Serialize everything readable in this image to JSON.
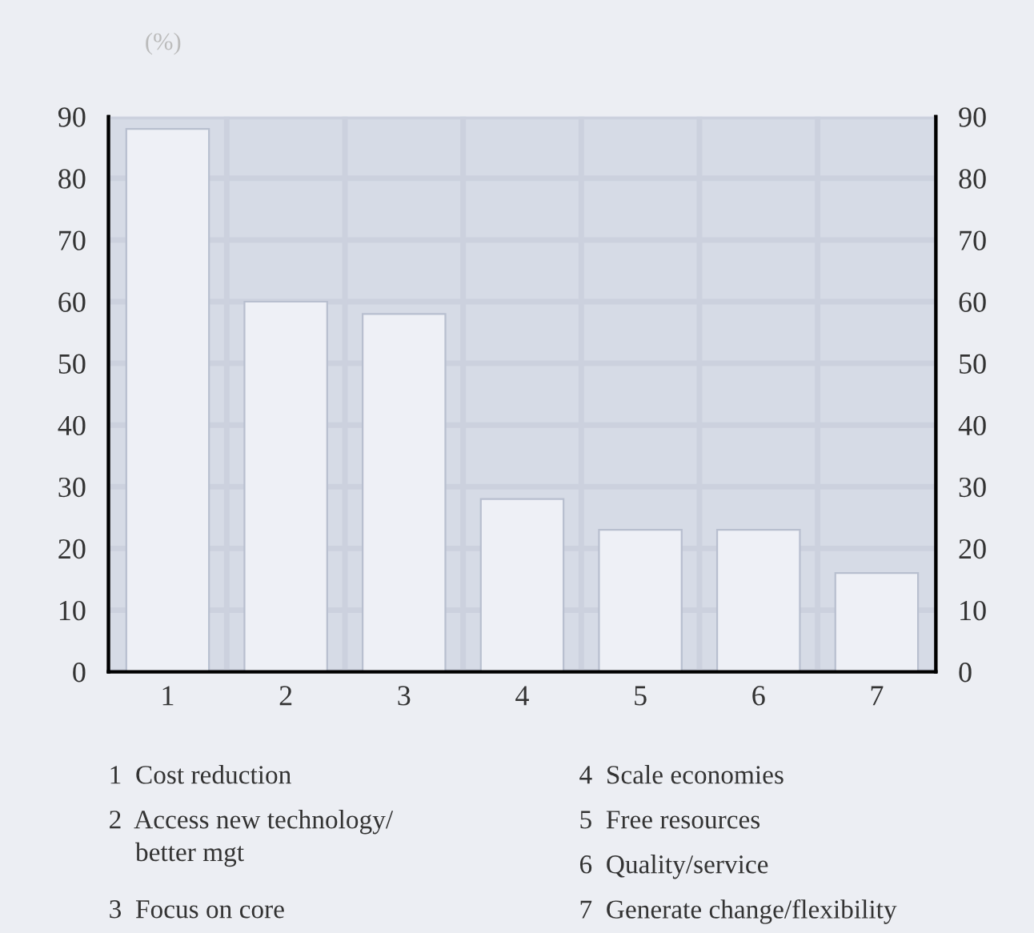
{
  "chart_data": {
    "type": "bar",
    "ylabel": "(%)",
    "categories": [
      "1",
      "2",
      "3",
      "4",
      "5",
      "6",
      "7"
    ],
    "values": [
      88,
      60,
      58,
      28,
      23,
      23,
      16
    ],
    "color": "#eef0f6",
    "ylim": [
      0,
      90
    ],
    "yticks": [
      0,
      10,
      20,
      30,
      40,
      50,
      60,
      70,
      80,
      90
    ],
    "y2lim": [
      0,
      90
    ],
    "y2ticks": [
      0,
      10,
      20,
      30,
      40,
      50,
      60,
      70,
      80,
      90
    ],
    "grid": true,
    "annotations": [
      "1  Cost reduction",
      "2  Access new technology/\n    better mgt",
      "3  Focus on core",
      "4  Scale economies",
      "5  Free resources",
      "6  Quality/service",
      "7  Generate change/flexibility"
    ]
  }
}
